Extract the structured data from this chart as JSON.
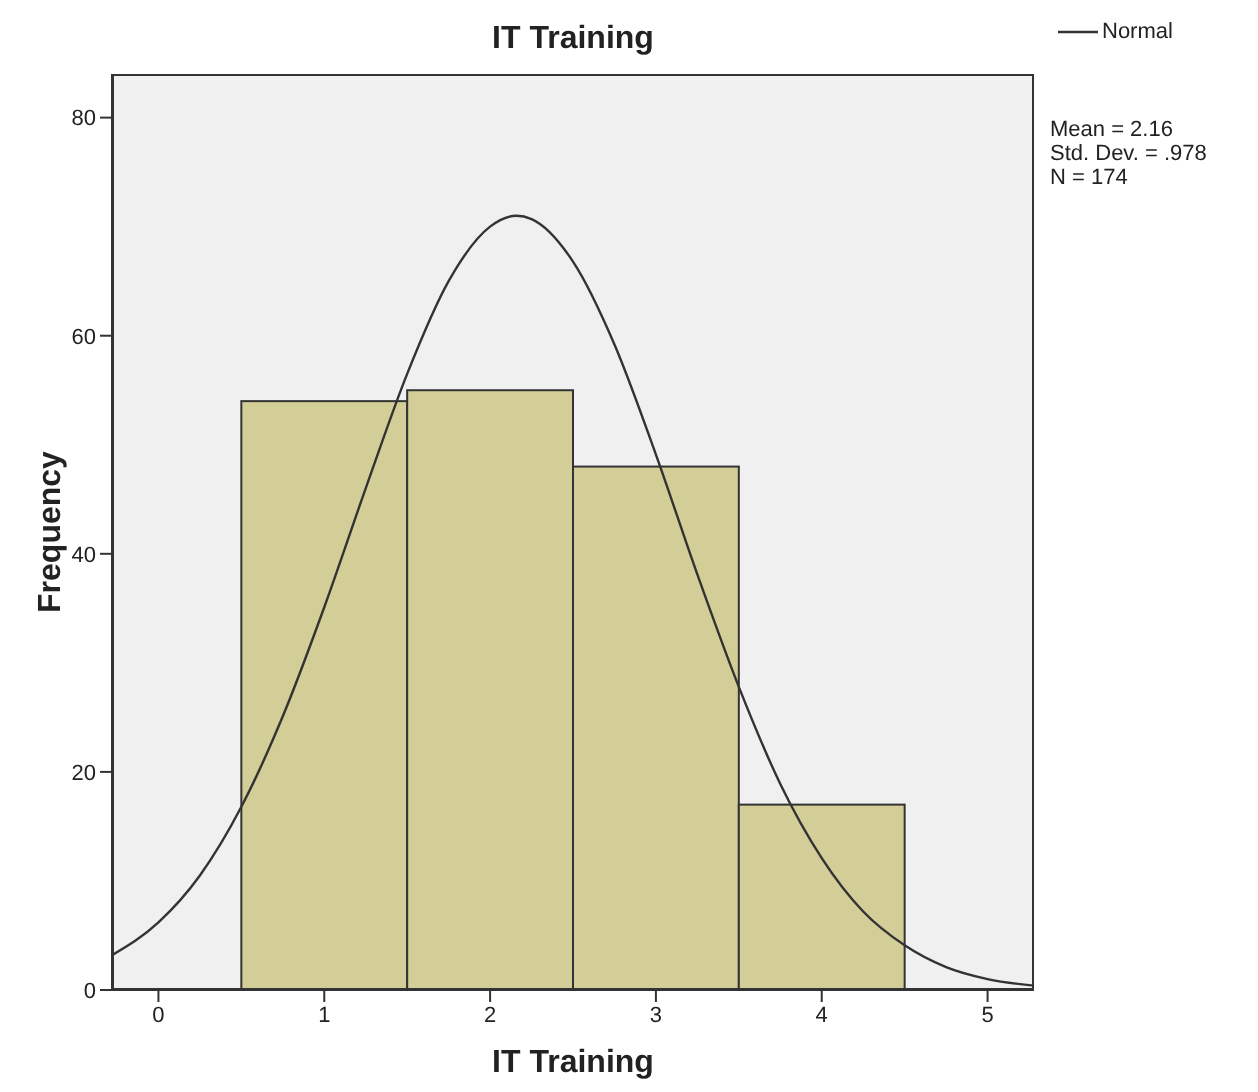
{
  "chart_data": {
    "type": "histogram",
    "title": "IT Training",
    "xlabel": "IT Training",
    "ylabel": "Frequency",
    "bins": [
      0.5,
      1.5,
      2.5,
      3.5,
      4.5
    ],
    "series": [
      {
        "color": "#d3ce98",
        "values": [
          54,
          55,
          48,
          17
        ]
      },
      {
        "type": "line",
        "name": "Normal",
        "color": "#333333",
        "x": [
          -0.28,
          0,
          0.25,
          0.5,
          0.75,
          1,
          1.25,
          1.5,
          1.75,
          2,
          2.16,
          2.25,
          2.5,
          2.75,
          3,
          3.25,
          3.5,
          3.75,
          4,
          4.25,
          4.5,
          4.75,
          5,
          5.28
        ],
        "values": [
          3.2,
          6.2,
          10.5,
          16.8,
          25.1,
          35.1,
          46.0,
          56.5,
          65.0,
          70.0,
          71.0,
          70.7,
          66.8,
          59.2,
          49.1,
          38.1,
          27.8,
          18.9,
          12.1,
          7.2,
          4.1,
          2.1,
          1.0,
          0.4
        ]
      }
    ],
    "xlim": [
      -0.28,
      5.28
    ],
    "xticks": [
      0,
      1,
      2,
      3,
      4,
      5
    ],
    "ylim": [
      0,
      84
    ],
    "yticks": [
      0,
      20,
      40,
      60,
      80
    ],
    "grid": false,
    "legend": "top right",
    "marker": "none",
    "line_style": "solid",
    "annotations": [
      "Mean = 2.16",
      "Std. Dev. = .978",
      "N = 174"
    ]
  }
}
